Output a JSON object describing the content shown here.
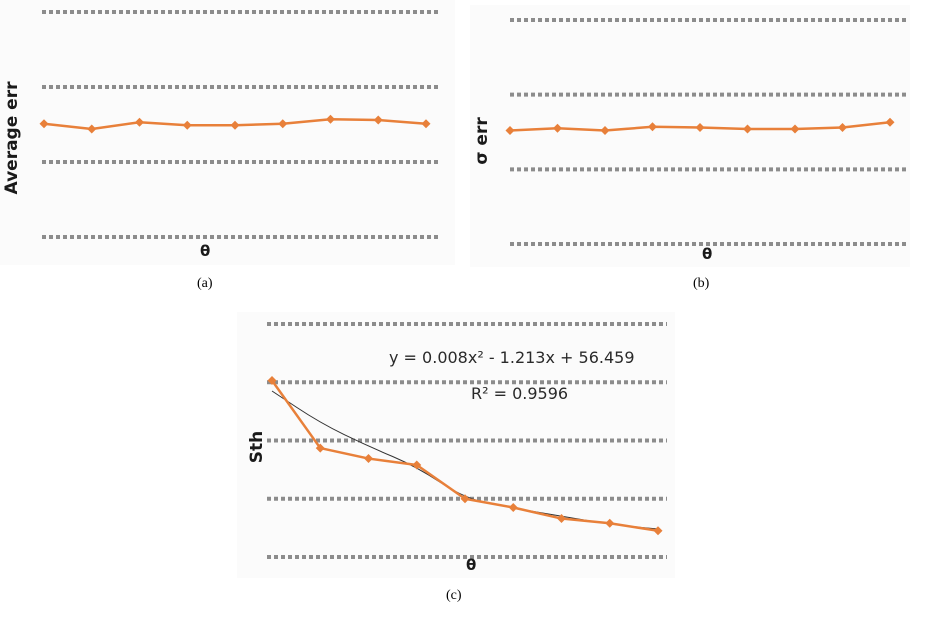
{
  "colors": {
    "series": "#E8803A",
    "grid": "#8c8c8c",
    "trend": "#333333"
  },
  "chart_data": [
    {
      "type": "line",
      "panel": "a",
      "caption": "(a)",
      "xlabel": "θ",
      "ylabel": "Average err",
      "grid": true,
      "ylim": [
        0,
        3
      ],
      "gridlines": [
        0,
        1,
        2,
        3
      ],
      "x": [
        1,
        2,
        3,
        4,
        5,
        6,
        7,
        8,
        9
      ],
      "series": [
        {
          "values": [
            1.51,
            1.44,
            1.53,
            1.49,
            1.49,
            1.51,
            1.57,
            1.56,
            1.51
          ]
        }
      ]
    },
    {
      "type": "line",
      "panel": "b",
      "caption": "(b)",
      "xlabel": "θ",
      "ylabel": "σ err",
      "grid": true,
      "ylim": [
        0,
        3
      ],
      "gridlines": [
        0,
        1,
        2,
        3
      ],
      "x": [
        1,
        2,
        3,
        4,
        5,
        6,
        7,
        8,
        9
      ],
      "series": [
        {
          "values": [
            1.52,
            1.55,
            1.52,
            1.57,
            1.56,
            1.54,
            1.54,
            1.56,
            1.63
          ]
        }
      ]
    },
    {
      "type": "line",
      "panel": "c",
      "caption": "(c)",
      "xlabel": "θ",
      "ylabel": "Sth",
      "grid": true,
      "ylim": [
        0,
        4
      ],
      "gridlines": [
        0,
        1,
        2,
        3,
        4
      ],
      "x": [
        1,
        2,
        3,
        4,
        5,
        6,
        7,
        8,
        9
      ],
      "series": [
        {
          "values": [
            3.03,
            1.87,
            1.69,
            1.58,
            1.0,
            0.85,
            0.66,
            0.58,
            0.45
          ]
        }
      ],
      "trendline": {
        "type": "polynomial",
        "equation": "y = 0.008x² - 1.213x + 56.459",
        "r_squared": "R² = 0.9596",
        "values": [
          2.85,
          2.3,
          1.9,
          1.55,
          1.0,
          0.84,
          0.7,
          0.56,
          0.48
        ]
      }
    }
  ]
}
